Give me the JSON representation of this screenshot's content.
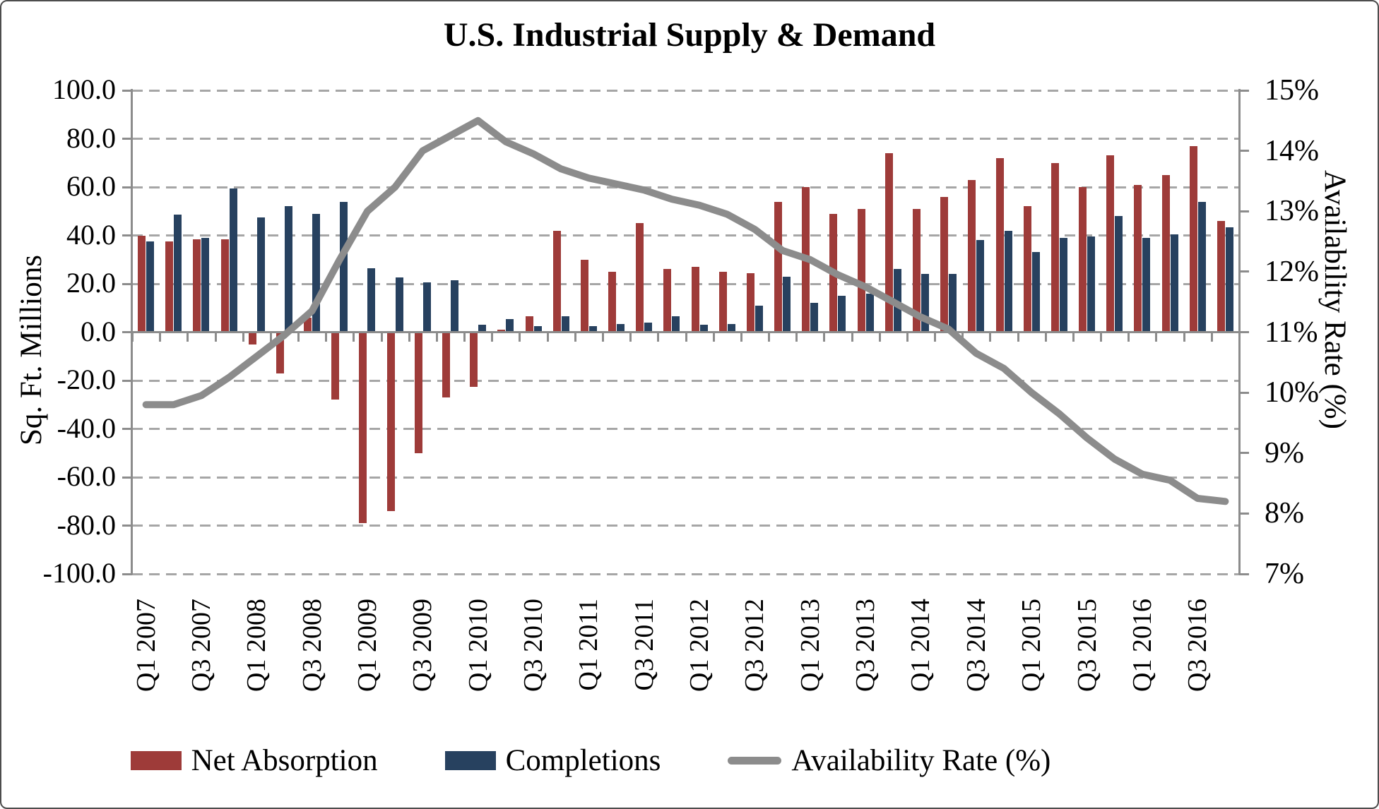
{
  "title": "U.S. Industrial Supply & Demand",
  "left_axis": {
    "title": "Sq. Ft. Millions",
    "tick_labels": [
      "100.0",
      "80.0",
      "60.0",
      "40.0",
      "20.0",
      "0.0",
      "-20.0",
      "-40.0",
      "-60.0",
      "-80.0",
      "-100.0"
    ],
    "min": -100,
    "max": 100,
    "step": 20
  },
  "right_axis": {
    "title": "Availability Rate (%)",
    "tick_labels": [
      "15%",
      "14%",
      "13%",
      "12%",
      "11%",
      "10%",
      "9%",
      "8%",
      "7%"
    ],
    "min": 7,
    "max": 15,
    "step": 1
  },
  "legend": [
    {
      "label": "Net Absorption",
      "color": "#9e3b39",
      "type": "box"
    },
    {
      "label": "Completions",
      "color": "#27415f",
      "type": "box"
    },
    {
      "label": "Availability Rate (%)",
      "color": "#8c8c8c",
      "type": "line"
    }
  ],
  "colors": {
    "net_absorption": "#9e3b39",
    "completions": "#27415f",
    "availability_line": "#8c8c8c",
    "gridline": "#a6a6a6",
    "axis": "#8c8c8c",
    "text": "#000000"
  },
  "chart_data": {
    "type": "bar",
    "note": "dual-axis combo: two bar series on left axis (Sq. Ft. Millions), one line series on right axis (Availability Rate %)",
    "categories": [
      "Q1 2007",
      "Q2 2007",
      "Q3 2007",
      "Q4 2007",
      "Q1 2008",
      "Q2 2008",
      "Q3 2008",
      "Q4 2008",
      "Q1 2009",
      "Q2 2009",
      "Q3 2009",
      "Q4 2009",
      "Q1 2010",
      "Q2 2010",
      "Q3 2010",
      "Q4 2010",
      "Q1 2011",
      "Q2 2011",
      "Q3 2011",
      "Q4 2011",
      "Q1 2012",
      "Q2 2012",
      "Q3 2012",
      "Q4 2012",
      "Q1 2013",
      "Q2 2013",
      "Q3 2013",
      "Q4 2013",
      "Q1 2014",
      "Q2 2014",
      "Q3 2014",
      "Q4 2014",
      "Q1 2015",
      "Q2 2015",
      "Q3 2015",
      "Q4 2015",
      "Q1 2016",
      "Q2 2016",
      "Q3 2016",
      "Q4 2016"
    ],
    "x_tick_labels_shown": [
      "Q1 2007",
      "Q3 2007",
      "Q1 2008",
      "Q3 2008",
      "Q1 2009",
      "Q3 2009",
      "Q1 2010",
      "Q3 2010",
      "Q1 2011",
      "Q3 2011",
      "Q1 2012",
      "Q3 2012",
      "Q1 2013",
      "Q3 2013",
      "Q1 2014",
      "Q3 2014",
      "Q1 2015",
      "Q3 2015",
      "Q1 2016",
      "Q3 2016"
    ],
    "series": [
      {
        "name": "Net Absorption",
        "type": "bar",
        "axis": "left",
        "color": "#9e3b39",
        "values": [
          40,
          37.5,
          38.5,
          38.5,
          -5,
          -17,
          6,
          -28,
          -79,
          -74,
          -50,
          -27,
          -22.5,
          1,
          6.5,
          42,
          30,
          25,
          45,
          26,
          27,
          25,
          24.5,
          54,
          60,
          49,
          51,
          74,
          51,
          56,
          63,
          72,
          52,
          70,
          60,
          73,
          61,
          65,
          77,
          46
        ]
      },
      {
        "name": "Completions",
        "type": "bar",
        "axis": "left",
        "color": "#27415f",
        "values": [
          37.5,
          48.5,
          39,
          59.5,
          47.5,
          52,
          49,
          54,
          26.5,
          22.5,
          20.5,
          21.5,
          3,
          5.5,
          2.5,
          6.5,
          2.5,
          3.5,
          4,
          6.5,
          3,
          3.5,
          11,
          23,
          12,
          15,
          16,
          26,
          24,
          24,
          38,
          42,
          33,
          39,
          39.5,
          48,
          39,
          40.5,
          54,
          43.5
        ]
      },
      {
        "name": "Availability Rate (%)",
        "type": "line",
        "axis": "right",
        "color": "#8c8c8c",
        "values": [
          9.8,
          9.8,
          9.95,
          10.25,
          10.6,
          10.95,
          11.35,
          12.2,
          13.0,
          13.4,
          14.0,
          14.25,
          14.5,
          14.15,
          13.95,
          13.7,
          13.55,
          13.45,
          13.35,
          13.2,
          13.1,
          12.95,
          12.7,
          12.35,
          12.2,
          11.95,
          11.75,
          11.5,
          11.25,
          11.05,
          10.65,
          10.4,
          10.0,
          9.65,
          9.25,
          8.9,
          8.65,
          8.55,
          8.25,
          8.2
        ]
      }
    ],
    "left_ylim": [
      -100,
      100
    ],
    "right_ylim": [
      7,
      15
    ],
    "grid": "horizontal dashed",
    "legend_position": "bottom"
  }
}
